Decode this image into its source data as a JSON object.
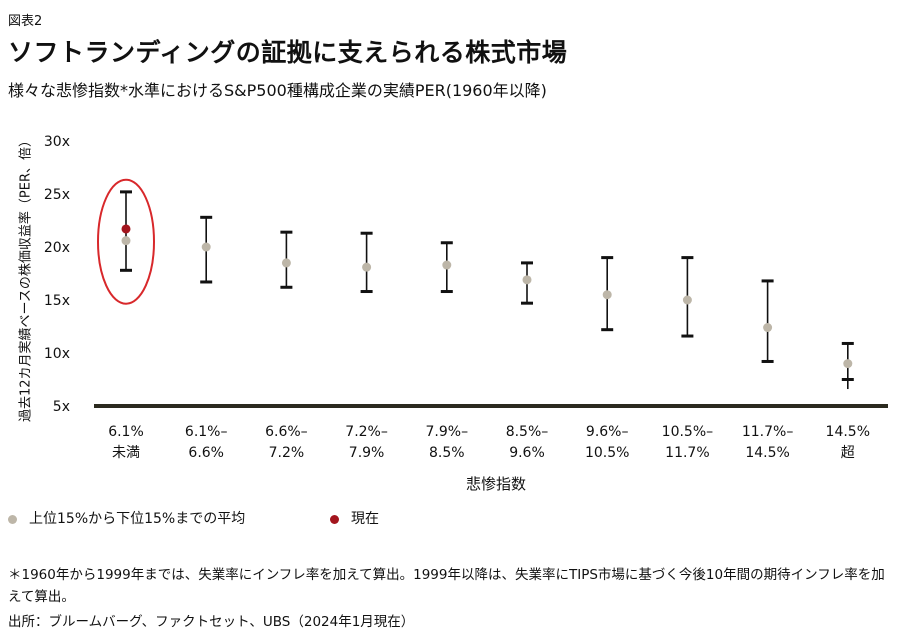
{
  "figure_label": "図表2",
  "title": "ソフトランディングの証拠に支えられる株式市場",
  "subtitle": "様々な悲惨指数*水準におけるS&P500種構成企業の実績PER(1960年以降)",
  "legend": {
    "avg_label": "上位15%から下位15%までの平均",
    "current_label": "現在"
  },
  "footnote": "＊1960年から1999年までは、失業率にインフレ率を加えて算出。1999年以降は、失業率にTIPS市場に基づく今後10年間の期待インフレ率を加えて算出。",
  "source": "出所：ブルームバーグ、ファクトセット、UBS（2024年1月現在）",
  "colors": {
    "avg_dot": "#bdb6a8",
    "current_dot": "#a3151e",
    "highlight_ring": "#d8282b",
    "axis_line": "#2b2a1f",
    "whisker": "#111111"
  },
  "chart_data": {
    "type": "errorbar",
    "xlabel": "悲惨指数",
    "ylabel": "過去12カ月実績ベースの株価収益率（PER、倍）",
    "ylim": [
      5,
      30
    ],
    "yticks": [
      "5x",
      "10x",
      "15x",
      "20x",
      "25x",
      "30x"
    ],
    "categories": [
      [
        "6.1%",
        "未満"
      ],
      [
        "6.1%–",
        "6.6%"
      ],
      [
        "6.6%–",
        "7.2%"
      ],
      [
        "7.2%–",
        "7.9%"
      ],
      [
        "7.9%–",
        "8.5%"
      ],
      [
        "8.5%–",
        "9.6%"
      ],
      [
        "9.6%–",
        "10.5%"
      ],
      [
        "10.5%–",
        "11.7%"
      ],
      [
        "11.7%–",
        "14.5%"
      ],
      [
        "14.5%",
        "超"
      ]
    ],
    "series": [
      {
        "name": "上位15%から下位15%までの平均",
        "mean": [
          20.6,
          20.0,
          18.5,
          18.1,
          18.3,
          16.9,
          15.5,
          15.0,
          12.4,
          9.0
        ],
        "upper": [
          25.2,
          22.8,
          21.4,
          21.3,
          20.4,
          18.5,
          19.0,
          19.0,
          16.8,
          10.9
        ],
        "lower": [
          17.8,
          16.7,
          16.2,
          15.8,
          15.8,
          14.7,
          12.2,
          11.6,
          9.2,
          7.5
        ],
        "whisker_low": [
          null,
          null,
          null,
          null,
          null,
          null,
          null,
          null,
          null,
          6.6
        ]
      },
      {
        "name": "現在",
        "category_index": 0,
        "value": 21.7
      }
    ],
    "highlight_category": 0,
    "grid": false,
    "legend_position": "bottom-left"
  }
}
